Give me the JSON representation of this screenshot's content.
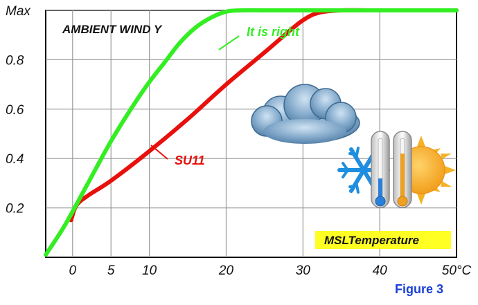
{
  "chart_data": {
    "type": "line",
    "title": "AMBIENT WIND Y",
    "xlabel": "",
    "ylabel": "",
    "xlim": [
      -3.5,
      50
    ],
    "ylim": [
      0,
      1.0
    ],
    "x_ticks": [
      0,
      5,
      10,
      20,
      30,
      40,
      50
    ],
    "x_tick_labels": [
      "0",
      "5",
      "10",
      "20",
      "30",
      "40",
      "50°C"
    ],
    "y_ticks": [
      0.2,
      0.4,
      0.6,
      0.8,
      1.0
    ],
    "y_tick_labels": [
      "0.2",
      "0.4",
      "0.6",
      "0.8",
      "Max"
    ],
    "grid": true,
    "series": [
      {
        "name": "It is right",
        "color": "#33ee22",
        "x": [
          -3.5,
          -1,
          2,
          5,
          8,
          10,
          12,
          14,
          16,
          18,
          20,
          22,
          25,
          30,
          40,
          50
        ],
        "y": [
          0.01,
          0.13,
          0.3,
          0.47,
          0.62,
          0.71,
          0.79,
          0.87,
          0.93,
          0.97,
          0.995,
          1.0,
          1.0,
          1.0,
          1.0,
          1.0
        ]
      },
      {
        "name": "SU11",
        "color": "#e8100c",
        "x": [
          -0.2,
          0.5,
          2,
          5,
          10,
          15,
          20,
          25,
          28,
          30,
          32,
          35,
          40,
          50
        ],
        "y": [
          0.15,
          0.21,
          0.25,
          0.31,
          0.43,
          0.56,
          0.7,
          0.83,
          0.91,
          0.96,
          0.99,
          1.0,
          1.0,
          1.0
        ]
      }
    ],
    "annotations": [
      "MSLTemperature"
    ]
  },
  "caption": "Figure 3"
}
